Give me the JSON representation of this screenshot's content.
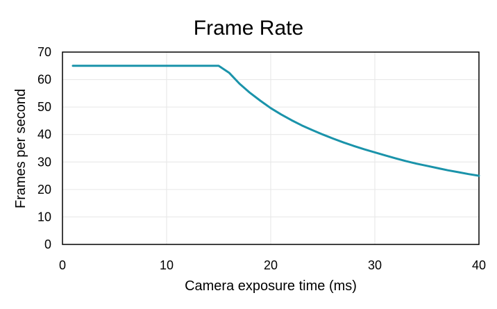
{
  "chart_data": {
    "type": "line",
    "title": "Frame Rate",
    "xlabel": "Camera exposure time (ms)",
    "ylabel": "Frames per second",
    "xlim": [
      0,
      40
    ],
    "ylim": [
      0,
      70
    ],
    "xticks": [
      0,
      10,
      20,
      30,
      40
    ],
    "yticks": [
      0,
      10,
      20,
      30,
      40,
      50,
      60,
      70
    ],
    "grid": true,
    "legend": "none",
    "line_color": "#1a93aa",
    "series": [
      {
        "x": [
          1,
          2,
          3,
          4,
          5,
          6,
          7,
          8,
          9,
          10,
          11,
          12,
          13,
          14,
          15,
          16,
          17,
          18,
          19,
          20,
          21,
          22,
          23,
          24,
          25,
          26,
          27,
          28,
          29,
          30,
          31,
          32,
          33,
          34,
          35,
          36,
          37,
          38,
          39,
          40
        ],
        "y": [
          65,
          65,
          65,
          65,
          65,
          65,
          65,
          65,
          65,
          65,
          65,
          65,
          65,
          65,
          65,
          62.5,
          58.5,
          55.2,
          52.3,
          49.6,
          47.3,
          45.2,
          43.3,
          41.6,
          40.0,
          38.5,
          37.1,
          35.8,
          34.6,
          33.5,
          32.4,
          31.3,
          30.3,
          29.4,
          28.6,
          27.8,
          27.0,
          26.3,
          25.6,
          25.0
        ]
      }
    ]
  }
}
